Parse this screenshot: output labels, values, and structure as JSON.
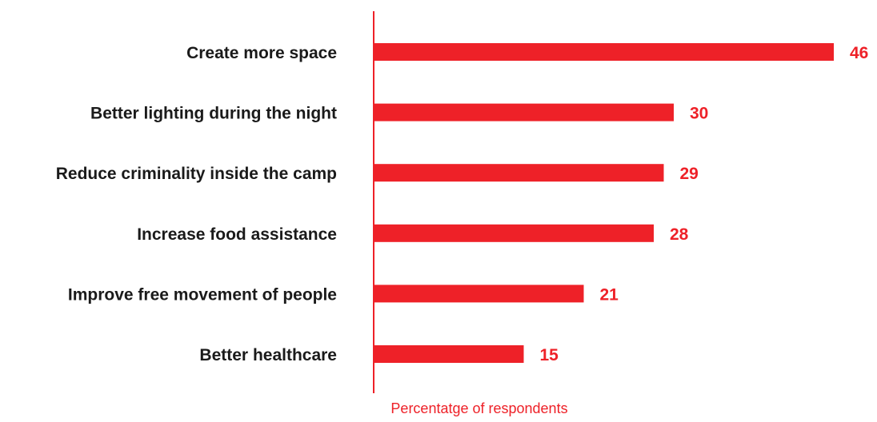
{
  "chart_data": {
    "type": "bar",
    "orientation": "horizontal",
    "categories": [
      "Create more space",
      "Better lighting during the night",
      "Reduce criminality inside the camp",
      "Increase food assistance",
      "Improve free movement of people",
      "Better healthcare"
    ],
    "values": [
      46,
      30,
      29,
      28,
      21,
      15
    ],
    "xlabel": "Percentatge of respondents",
    "ylabel": "",
    "title": "",
    "xlim": [
      0,
      46
    ],
    "grid": false,
    "legend": "none",
    "colors": {
      "bar": "#ee2128",
      "axis": "#ee2128",
      "value_label": "#ee2128",
      "category_label": "#1a1a1a",
      "axis_title": "#ee2128"
    }
  }
}
